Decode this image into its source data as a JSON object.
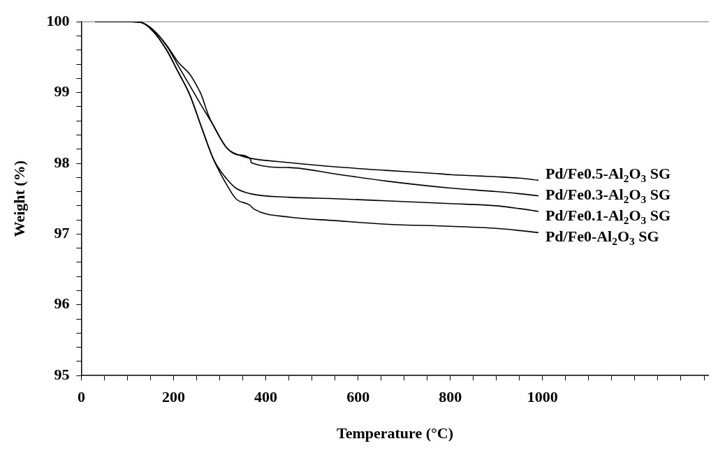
{
  "chart_data": {
    "type": "line",
    "xlabel": "Temperature (°C)",
    "ylabel": "Weight (%)",
    "xlim": [
      0,
      1360
    ],
    "ylim": [
      95,
      100
    ],
    "xticks": [
      0,
      {
        "value": 50,
        "label": null
      },
      {
        "value": 100,
        "label": null
      },
      {
        "value": 150,
        "label": null
      },
      200,
      {
        "value": 250,
        "label": null
      },
      {
        "value": 300,
        "label": null
      },
      {
        "value": 350,
        "label": null
      },
      400,
      {
        "value": 450,
        "label": null
      },
      {
        "value": 500,
        "label": null
      },
      {
        "value": 550,
        "label": null
      },
      600,
      {
        "value": 650,
        "label": null
      },
      {
        "value": 700,
        "label": null
      },
      {
        "value": 750,
        "label": null
      },
      800,
      {
        "value": 850,
        "label": null
      },
      {
        "value": 900,
        "label": null
      },
      {
        "value": 950,
        "label": null
      },
      1000,
      {
        "value": 1050,
        "label": null
      },
      {
        "value": 1100,
        "label": null
      },
      {
        "value": 1150,
        "label": null
      },
      {
        "value": 1200,
        "label": null
      },
      {
        "value": 1250,
        "label": null
      },
      {
        "value": 1300,
        "label": null
      },
      {
        "value": 1350,
        "label": null
      }
    ],
    "yticks": [
      95,
      {
        "value": 95.2,
        "label": null
      },
      {
        "value": 95.4,
        "label": null
      },
      {
        "value": 95.6,
        "label": null
      },
      {
        "value": 95.8,
        "label": null
      },
      96,
      {
        "value": 96.2,
        "label": null
      },
      {
        "value": 96.4,
        "label": null
      },
      {
        "value": 96.6,
        "label": null
      },
      {
        "value": 96.8,
        "label": null
      },
      97,
      {
        "value": 97.2,
        "label": null
      },
      {
        "value": 97.4,
        "label": null
      },
      {
        "value": 97.6,
        "label": null
      },
      {
        "value": 97.8,
        "label": null
      },
      98,
      {
        "value": 98.2,
        "label": null
      },
      {
        "value": 98.4,
        "label": null
      },
      {
        "value": 98.6,
        "label": null
      },
      {
        "value": 98.8,
        "label": null
      },
      99,
      {
        "value": 99.2,
        "label": null
      },
      {
        "value": 99.4,
        "label": null
      },
      {
        "value": 99.6,
        "label": null
      },
      {
        "value": 99.8,
        "label": null
      },
      100
    ],
    "grid": false,
    "legend": false,
    "marker": "none",
    "line_style": "solid",
    "ref_lines": [
      {
        "axis": "y",
        "value": 100,
        "color": "#a0a0a0"
      }
    ],
    "series": [
      {
        "name": "Pd/Fe0.5-Al$_{2}$O$_{3}$ SG",
        "color": "#000000",
        "x": [
          30,
          110,
          130,
          155,
          185,
          210,
          235,
          260,
          285,
          315,
          340,
          367,
          450,
          550,
          660,
          760,
          800,
          900,
          950,
          991
        ],
        "values": [
          100,
          100,
          99.99,
          99.89,
          99.66,
          99.38,
          99.1,
          98.82,
          98.55,
          98.22,
          98.12,
          98.07,
          98.01,
          97.95,
          97.9,
          97.86,
          97.84,
          97.81,
          97.79,
          97.76
        ]
      },
      {
        "name": "Pd/Fe0.3-Al$_{2}$O$_{3}$ SG",
        "color": "#000000",
        "x": [
          30,
          110,
          130,
          155,
          185,
          210,
          235,
          250,
          260,
          275,
          285,
          315,
          340,
          367,
          368,
          450,
          550,
          660,
          800,
          900,
          950,
          991
        ],
        "values": [
          100,
          100,
          99.99,
          99.89,
          99.67,
          99.43,
          99.26,
          99.1,
          98.97,
          98.69,
          98.55,
          98.22,
          98.12,
          98.06,
          98.01,
          97.94,
          97.85,
          97.75,
          97.65,
          97.6,
          97.57,
          97.54
        ]
      },
      {
        "name": "Pd/Fe0.1-Al$_{2}$O$_{3}$ SG",
        "color": "#000000",
        "x": [
          30,
          110,
          130,
          155,
          185,
          210,
          235,
          260,
          285,
          295,
          315,
          335,
          367,
          450,
          550,
          660,
          800,
          900,
          950,
          991
        ],
        "values": [
          100,
          100,
          99.99,
          99.87,
          99.6,
          99.29,
          98.97,
          98.52,
          98.08,
          97.96,
          97.78,
          97.65,
          97.57,
          97.52,
          97.5,
          97.47,
          97.43,
          97.4,
          97.36,
          97.32
        ]
      },
      {
        "name": "Pd/Fe0-Al$_{2}$O$_{3}$ SG",
        "color": "#000000",
        "x": [
          30,
          110,
          130,
          155,
          185,
          210,
          235,
          260,
          285,
          295,
          315,
          335,
          365,
          375,
          450,
          550,
          660,
          800,
          900,
          950,
          991
        ],
        "values": [
          100,
          100,
          99.99,
          99.87,
          99.6,
          99.29,
          98.97,
          98.52,
          98.08,
          97.94,
          97.7,
          97.5,
          97.41,
          97.35,
          97.24,
          97.19,
          97.14,
          97.11,
          97.08,
          97.05,
          97.02
        ]
      }
    ]
  }
}
